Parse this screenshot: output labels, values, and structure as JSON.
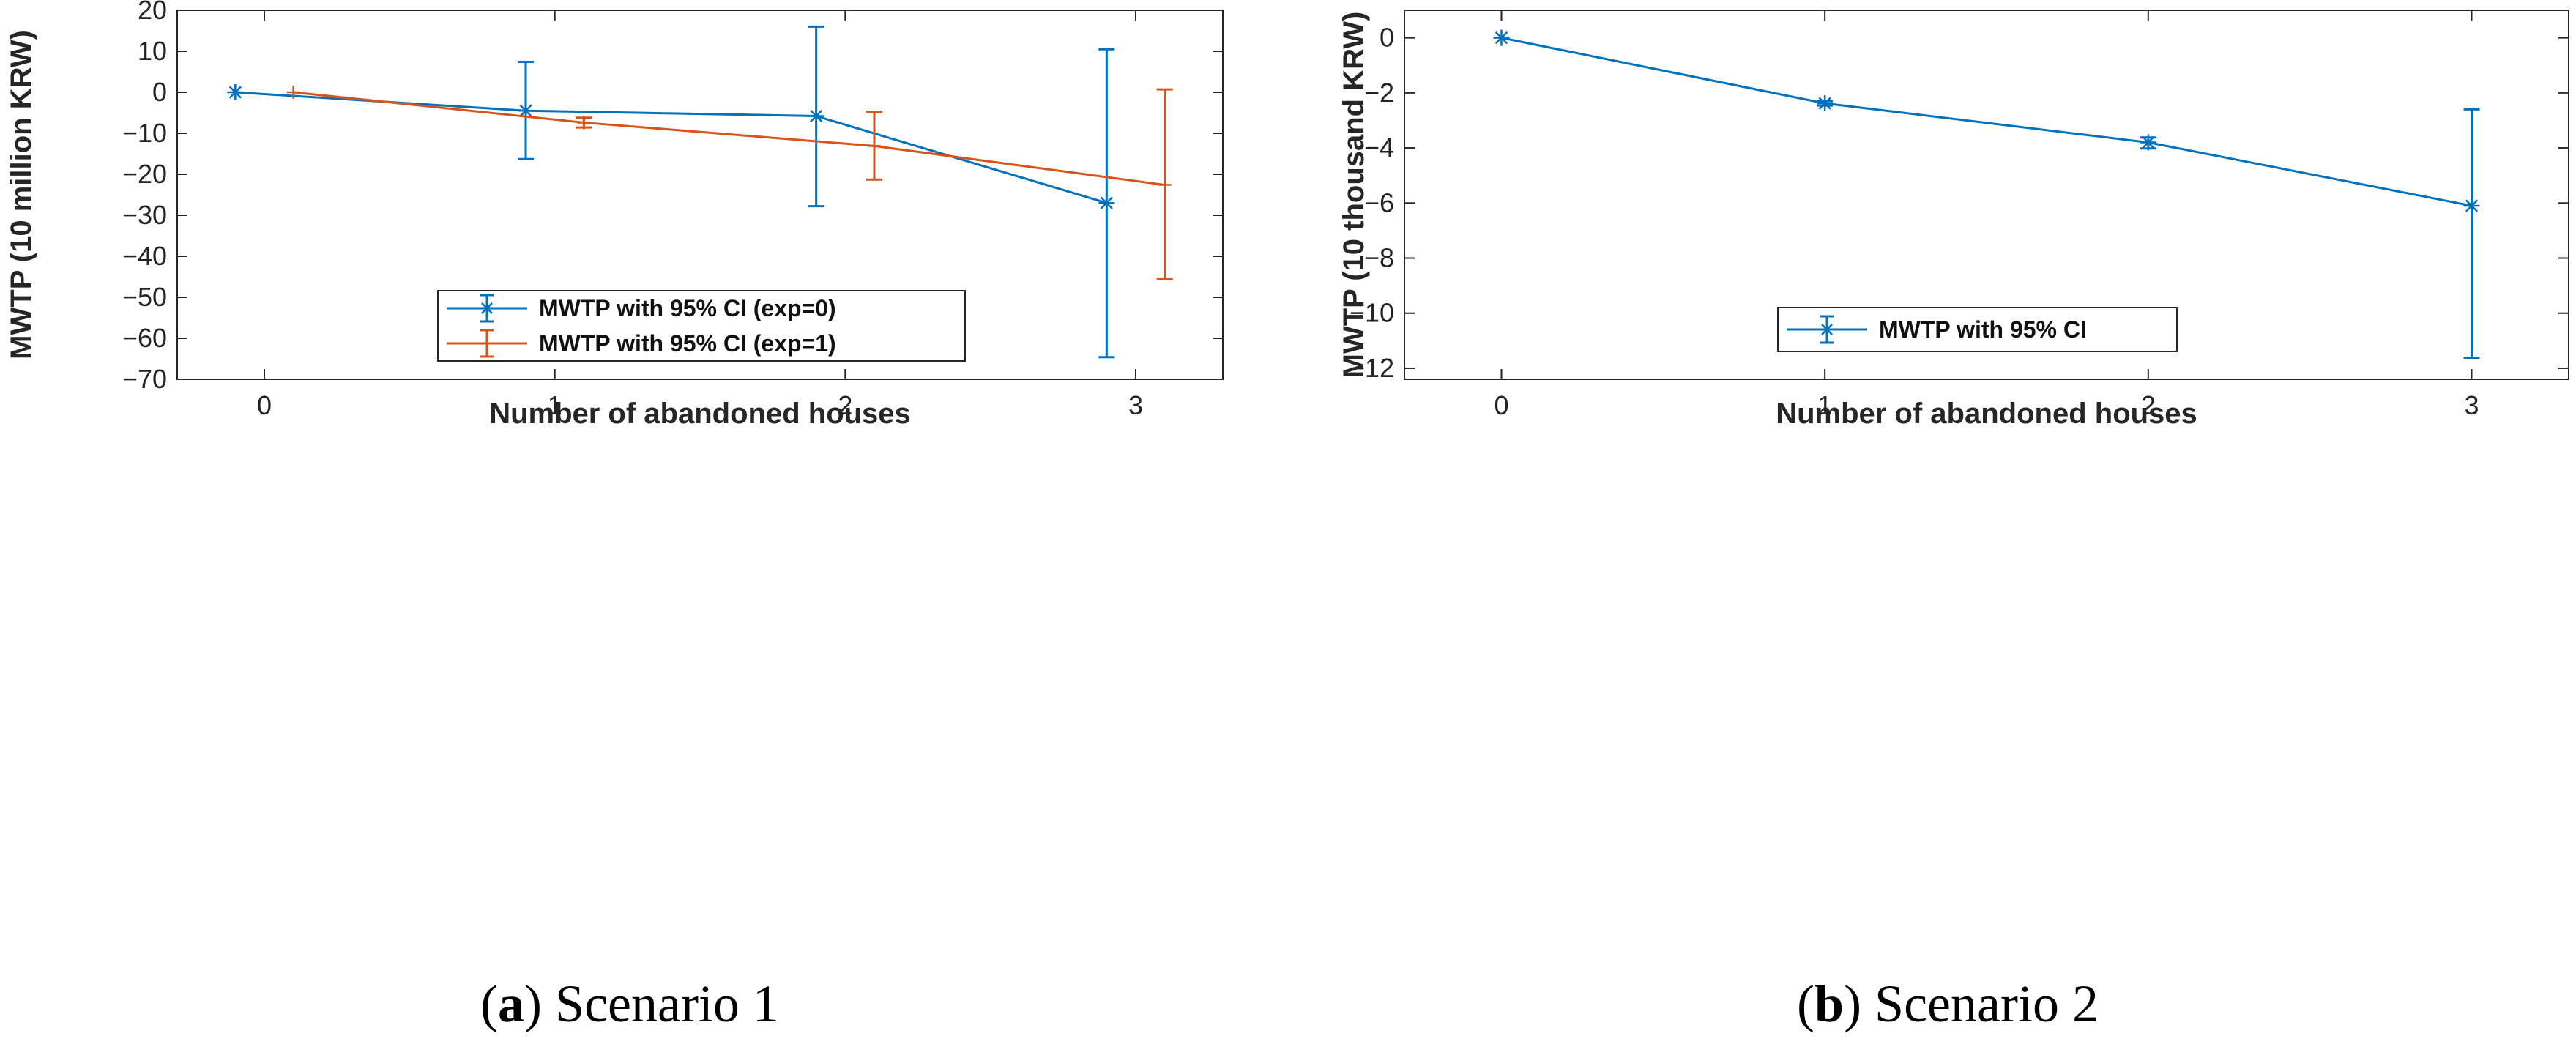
{
  "colors": {
    "series1": "#0072BD",
    "series2": "#D95319",
    "axis": "#262626"
  },
  "chart_data": [
    {
      "type": "line",
      "title": "",
      "caption": {
        "label": "a",
        "text": " Scenario 1"
      },
      "xlabel": "Number of abandoned houses",
      "ylabel": "MWTP (10 million KRW)",
      "xlim": [
        -0.3,
        3.3
      ],
      "ylim": [
        -70,
        20
      ],
      "xticks": [
        0,
        1,
        2,
        3
      ],
      "yticks": [
        20,
        10,
        0,
        -10,
        -20,
        -30,
        -40,
        -50,
        -60,
        -70
      ],
      "x_tick_labels": [
        "0",
        "1",
        "2",
        "3"
      ],
      "y_tick_labels": [
        "20",
        "10",
        "0",
        "−10",
        "−20",
        "−30",
        "−40",
        "−50",
        "−60",
        "−70"
      ],
      "legend_position": "bottom-center",
      "series": [
        {
          "name": "MWTP with 95% CI (exp=0)",
          "color": "#0072BD",
          "x": [
            -0.1,
            0.9,
            1.9,
            2.9
          ],
          "y": [
            0,
            -4.5,
            -5.8,
            -27
          ],
          "ci_upper": [
            0,
            7.4,
            16,
            10.5
          ],
          "ci_lower": [
            0,
            -16.3,
            -27.8,
            -64.6
          ]
        },
        {
          "name": "MWTP with 95% CI (exp=1)",
          "color": "#D95319",
          "x": [
            0.1,
            1.1,
            2.1,
            3.1
          ],
          "y": [
            0,
            -7.4,
            -13.1,
            -22.6
          ],
          "ci_upper": [
            0,
            -6.2,
            -4.8,
            0.7
          ],
          "ci_lower": [
            0,
            -8.6,
            -21.3,
            -45.6
          ]
        }
      ]
    },
    {
      "type": "line",
      "title": "",
      "caption": {
        "label": "b",
        "text": " Scenario 2"
      },
      "xlabel": "Number of abandoned houses",
      "ylabel": "MWTP (10 thousand KRW)",
      "xlim": [
        -0.3,
        3.3
      ],
      "ylim": [
        -12.4,
        1
      ],
      "xticks": [
        0,
        1,
        2,
        3
      ],
      "yticks": [
        0,
        -2,
        -4,
        -6,
        -8,
        -10,
        -12
      ],
      "x_tick_labels": [
        "0",
        "1",
        "2",
        "3"
      ],
      "y_tick_labels": [
        "0",
        "−2",
        "−4",
        "−6",
        "−8",
        "−10",
        "−12"
      ],
      "legend_position": "bottom-center",
      "series": [
        {
          "name": "MWTP with 95% CI",
          "color": "#0072BD",
          "x": [
            0,
            1,
            2,
            3
          ],
          "y": [
            0,
            -2.38,
            -3.8,
            -6.1
          ],
          "ci_upper": [
            0,
            -2.3,
            -3.62,
            -2.6
          ],
          "ci_lower": [
            0,
            -2.46,
            -4.02,
            -11.62
          ]
        }
      ]
    }
  ]
}
